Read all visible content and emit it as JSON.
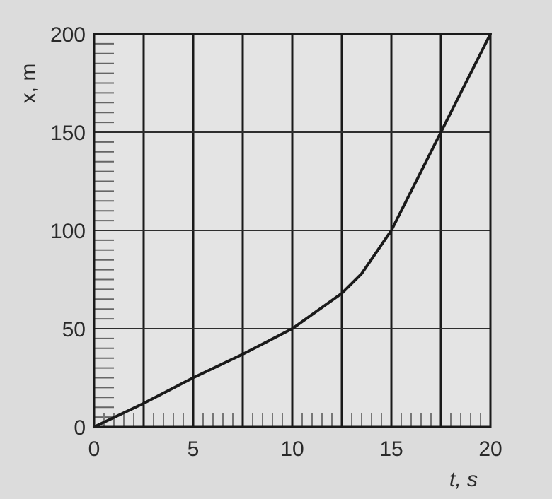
{
  "chart_data": {
    "type": "line",
    "title": "",
    "xlabel": "t, s",
    "ylabel": "x, m",
    "xlim": [
      0,
      20
    ],
    "ylim": [
      0,
      200
    ],
    "x_ticks": [
      "0",
      "5",
      "10",
      "15",
      "20"
    ],
    "y_ticks": [
      "0",
      "50",
      "100",
      "150",
      "200"
    ],
    "grid": true,
    "series": [
      {
        "x": [
          0,
          2.5,
          5,
          7.5,
          10,
          12.5,
          13.5,
          15,
          17.5,
          20
        ],
        "y": [
          0,
          12,
          25,
          37,
          50,
          68,
          78,
          100,
          150,
          200
        ]
      }
    ],
    "colors": {
      "background": "#dcdcdc",
      "plot_area": "#e4e4e4",
      "ink": "#1a1a1a"
    }
  }
}
